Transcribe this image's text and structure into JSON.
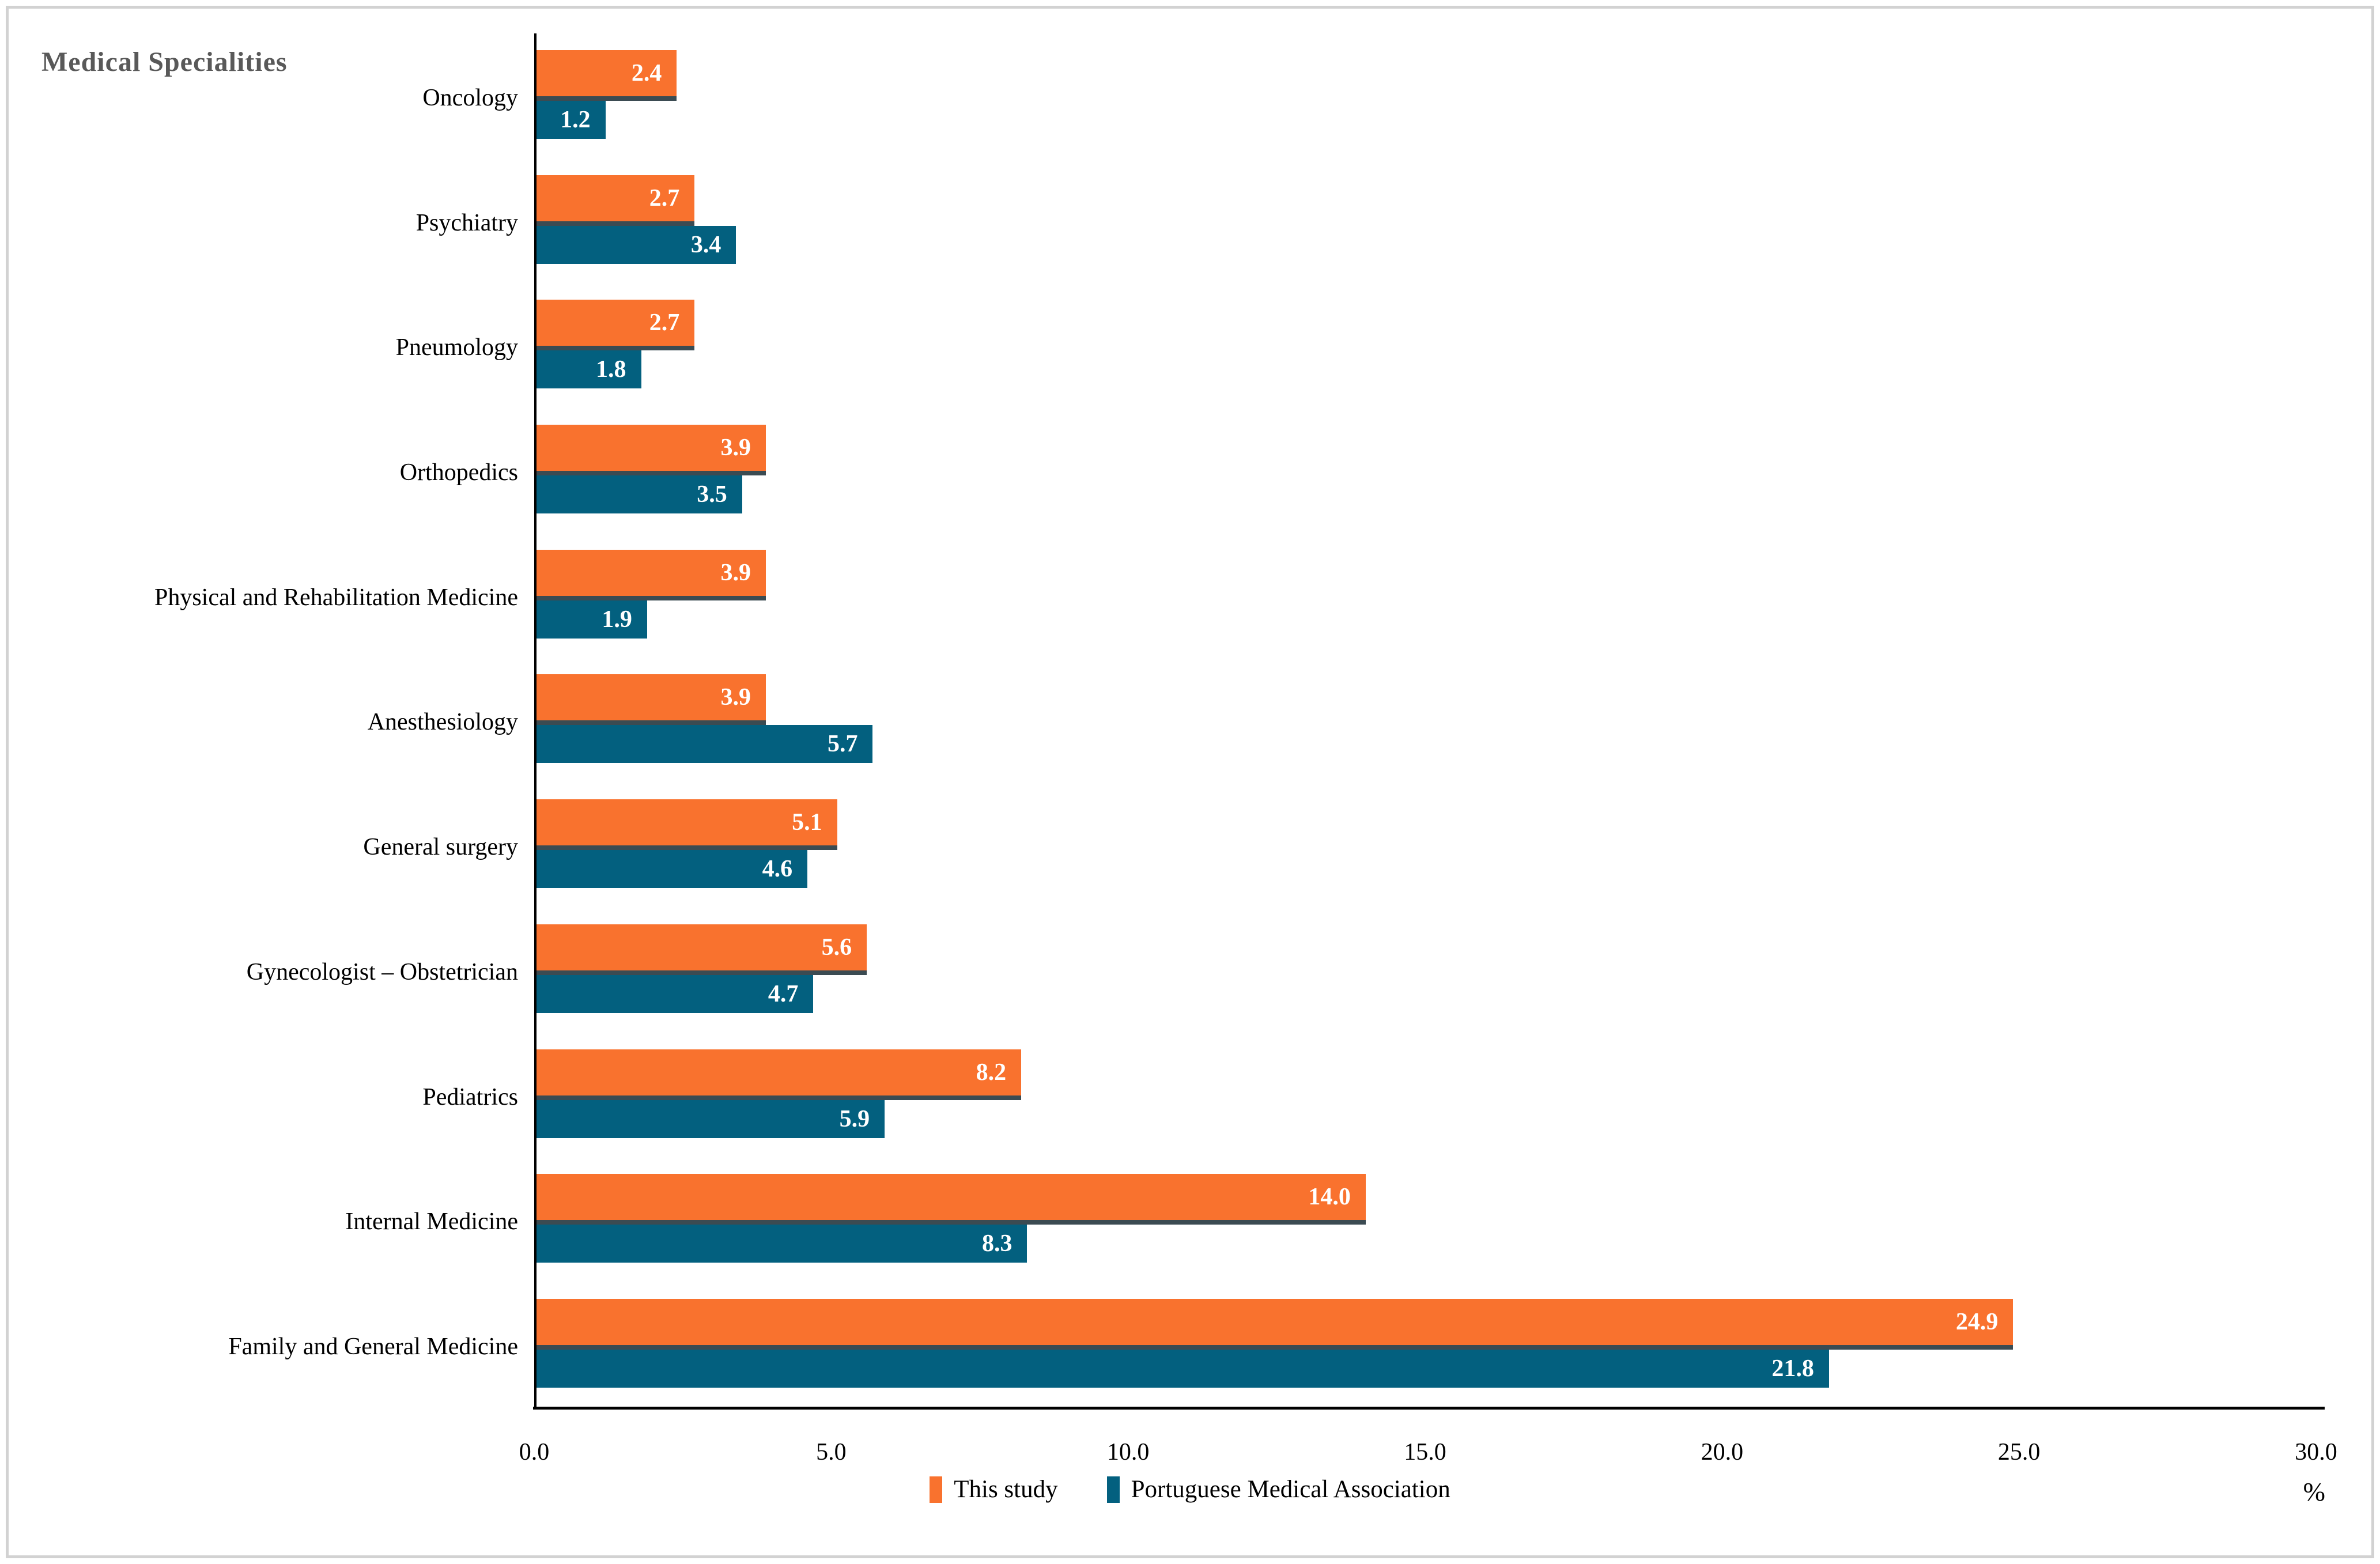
{
  "figure": {
    "title": "Medical Specialities",
    "x_unit": "%"
  },
  "colors": {
    "this_study_orange": "#F9722E",
    "pma_teal": "#03607F",
    "series_divider_dark": "#3B4B52",
    "title_gray": "#595959",
    "axis_black": "#000000",
    "frame_gray": "#D2D2D2",
    "value_label_white": "#FFFFFF"
  },
  "chart_data": {
    "type": "bar",
    "orientation": "horizontal",
    "title": "Medical Specialities",
    "xlabel": "%",
    "xlim": [
      0,
      30
    ],
    "x_ticks": [
      0,
      5,
      10,
      15,
      20,
      25,
      30
    ],
    "x_tick_labels": [
      "0.0",
      "5.0",
      "10.0",
      "15.0",
      "20.0",
      "25.0",
      "30.0"
    ],
    "grid": false,
    "legend_position": "bottom-center",
    "value_label_style": "inside bar end, one decimal, white bold",
    "categories": [
      "Oncology",
      "Psychiatry",
      "Pneumology",
      "Orthopedics",
      "Physical and Rehabilitation Medicine",
      "Anesthesiology",
      "General surgery",
      "Gynecologist – Obstetrician",
      "Pediatrics",
      "Internal Medicine",
      "Family and General Medicine"
    ],
    "series": [
      {
        "name": "This study",
        "color": "#F9722E",
        "values": [
          2.4,
          2.7,
          2.7,
          3.9,
          3.9,
          3.9,
          5.1,
          5.6,
          8.2,
          14.0,
          24.9
        ]
      },
      {
        "name": "Portuguese Medical Association",
        "color": "#03607F",
        "values": [
          1.2,
          3.4,
          1.8,
          3.5,
          1.9,
          5.7,
          4.6,
          4.7,
          5.9,
          8.3,
          21.8
        ]
      }
    ]
  }
}
